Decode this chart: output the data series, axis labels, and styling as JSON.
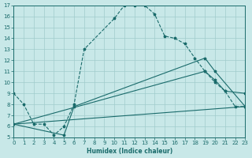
{
  "xlabel": "Humidex (Indice chaleur)",
  "bg_color": "#c8e8e8",
  "grid_color": "#a0cccc",
  "line_color": "#1a6b6b",
  "xlim": [
    0,
    23
  ],
  "ylim": [
    5,
    17
  ],
  "xticks": [
    0,
    1,
    2,
    3,
    4,
    5,
    6,
    7,
    8,
    9,
    10,
    11,
    12,
    13,
    14,
    15,
    16,
    17,
    18,
    19,
    20,
    21,
    22,
    23
  ],
  "yticks": [
    5,
    6,
    7,
    8,
    9,
    10,
    11,
    12,
    13,
    14,
    15,
    16,
    17
  ],
  "line1_x": [
    0,
    1,
    2,
    3,
    4,
    5,
    6,
    7,
    10,
    11,
    12,
    13,
    14,
    15,
    16,
    17,
    18,
    19,
    20,
    21,
    22,
    23
  ],
  "line1_y": [
    9,
    8,
    6.2,
    6.2,
    5.2,
    6,
    8,
    13,
    15.8,
    17,
    17,
    17,
    16.2,
    14.2,
    14,
    13.5,
    12.2,
    11,
    10,
    9.2,
    7.8,
    7.8
  ],
  "line2_x": [
    0,
    23
  ],
  "line2_y": [
    6.2,
    7.8
  ],
  "line3_x": [
    0,
    19,
    20,
    21,
    23
  ],
  "line3_y": [
    6.2,
    11,
    10.2,
    9.2,
    9.0
  ],
  "line4_x": [
    0,
    5,
    6,
    19,
    20,
    23
  ],
  "line4_y": [
    6.2,
    5.2,
    7.8,
    12.2,
    11,
    7.8
  ]
}
